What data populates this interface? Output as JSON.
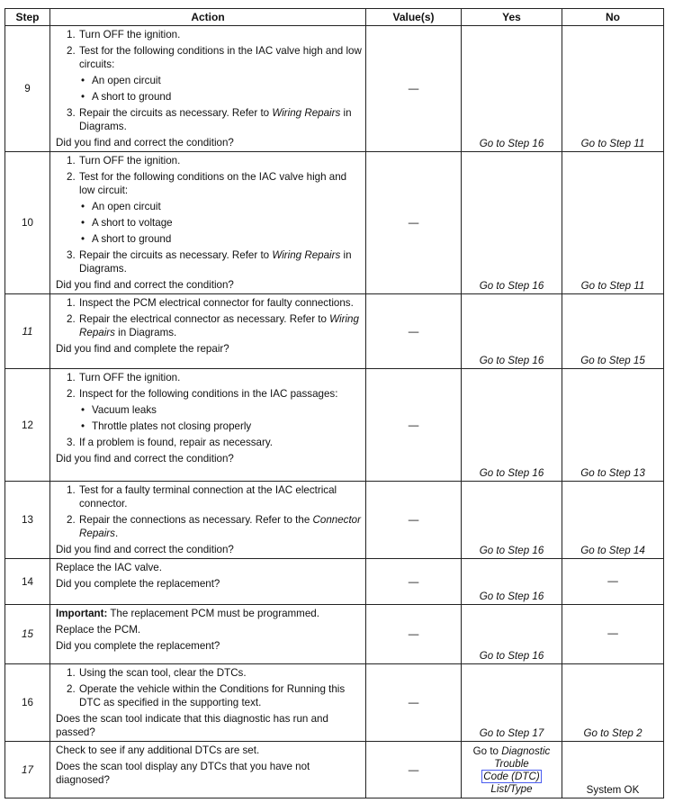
{
  "headers": {
    "step": "Step",
    "action": "Action",
    "values": "Value(s)",
    "yes": "Yes",
    "no": "No"
  },
  "rows": [
    {
      "step": "9",
      "step_italic": false,
      "value": "—",
      "yes": "Go to Step 16",
      "no": "Go to Step 11",
      "action": [
        {
          "type": "num",
          "n": "1.",
          "segs": [
            {
              "t": "Turn OFF the ignition."
            }
          ]
        },
        {
          "type": "num",
          "n": "2.",
          "segs": [
            {
              "t": "Test for the following conditions in the IAC valve high and low circuits:"
            }
          ]
        },
        {
          "type": "bul",
          "segs": [
            {
              "t": "An open circuit"
            }
          ]
        },
        {
          "type": "bul",
          "segs": [
            {
              "t": "A short to ground"
            }
          ]
        },
        {
          "type": "num",
          "n": "3.",
          "segs": [
            {
              "t": "Repair the circuits as necessary. Refer to "
            },
            {
              "t": "Wiring Repairs",
              "i": true
            },
            {
              "t": " in Diagrams."
            }
          ]
        },
        {
          "type": "p",
          "segs": [
            {
              "t": "Did you find and correct the condition?"
            }
          ]
        }
      ]
    },
    {
      "step": "10",
      "step_italic": false,
      "value": "—",
      "yes": "Go to Step 16",
      "no": "Go to Step 11",
      "action": [
        {
          "type": "num",
          "n": "1.",
          "segs": [
            {
              "t": "Turn OFF the ignition."
            }
          ]
        },
        {
          "type": "num",
          "n": "2.",
          "segs": [
            {
              "t": "Test for the following conditions on the IAC valve high and low circuit:"
            }
          ]
        },
        {
          "type": "bul",
          "segs": [
            {
              "t": "An open circuit"
            }
          ]
        },
        {
          "type": "bul",
          "segs": [
            {
              "t": "A short to voltage"
            }
          ]
        },
        {
          "type": "bul",
          "segs": [
            {
              "t": "A short to ground"
            }
          ]
        },
        {
          "type": "num",
          "n": "3.",
          "segs": [
            {
              "t": "Repair the circuits as necessary. Refer to "
            },
            {
              "t": "Wiring Repairs",
              "i": true
            },
            {
              "t": " in Diagrams."
            }
          ]
        },
        {
          "type": "p",
          "segs": [
            {
              "t": "Did you find and correct the condition?"
            }
          ]
        }
      ]
    },
    {
      "step": "11",
      "step_italic": true,
      "value": "—",
      "yes": "Go to Step 16",
      "no": "Go to Step 15",
      "action": [
        {
          "type": "num",
          "n": "1.",
          "segs": [
            {
              "t": "Inspect the PCM electrical connector for faulty connections."
            }
          ]
        },
        {
          "type": "num",
          "n": "2.",
          "segs": [
            {
              "t": "Repair the electrical connector as necessary. Refer to "
            },
            {
              "t": "Wiring Repairs",
              "i": true
            },
            {
              "t": " in Diagrams."
            }
          ]
        },
        {
          "type": "p",
          "segs": [
            {
              "t": "Did you find and complete the repair?"
            }
          ]
        }
      ]
    },
    {
      "step": "12",
      "step_italic": false,
      "value": "—",
      "yes": "Go to Step 16",
      "no": "Go to Step 13",
      "action": [
        {
          "type": "num",
          "n": "1.",
          "segs": [
            {
              "t": "Turn OFF the ignition."
            }
          ]
        },
        {
          "type": "num",
          "n": "2.",
          "segs": [
            {
              "t": "Inspect for the following conditions in the IAC passages:"
            }
          ]
        },
        {
          "type": "bul",
          "segs": [
            {
              "t": "Vacuum leaks"
            }
          ]
        },
        {
          "type": "bul",
          "segs": [
            {
              "t": "Throttle plates not closing properly"
            }
          ]
        },
        {
          "type": "num",
          "n": "3.",
          "segs": [
            {
              "t": "If a problem is found, repair as necessary."
            }
          ]
        },
        {
          "type": "p",
          "segs": [
            {
              "t": "Did you find and correct the condition?"
            }
          ]
        }
      ]
    },
    {
      "step": "13",
      "step_italic": false,
      "value": "—",
      "yes": "Go to Step 16",
      "no": "Go to Step 14",
      "action": [
        {
          "type": "num",
          "n": "1.",
          "segs": [
            {
              "t": "Test for a faulty terminal connection at the IAC electrical connector."
            }
          ]
        },
        {
          "type": "num",
          "n": "2.",
          "segs": [
            {
              "t": "Repair the connections as necessary. Refer to the "
            },
            {
              "t": "Connector Repairs",
              "i": true
            },
            {
              "t": "."
            }
          ]
        },
        {
          "type": "p",
          "segs": [
            {
              "t": "Did you find and correct the condition?"
            }
          ]
        }
      ]
    },
    {
      "step": "14",
      "step_italic": false,
      "value": "—",
      "yes": "Go to Step 16",
      "no": "—",
      "action": [
        {
          "type": "p",
          "segs": [
            {
              "t": "Replace the IAC valve."
            }
          ]
        },
        {
          "type": "p",
          "segs": [
            {
              "t": "Did you complete the replacement?"
            }
          ]
        }
      ]
    },
    {
      "step": "15",
      "step_italic": true,
      "value": "—",
      "yes": "Go to Step 16",
      "no": "—",
      "action": [
        {
          "type": "p",
          "segs": [
            {
              "t": "Important:",
              "b": true
            },
            {
              "t": " The replacement PCM must be programmed."
            }
          ]
        },
        {
          "type": "p",
          "segs": [
            {
              "t": "Replace the PCM."
            }
          ]
        },
        {
          "type": "p",
          "segs": [
            {
              "t": " Did you complete the replacement?"
            }
          ]
        }
      ]
    },
    {
      "step": "16",
      "step_italic": false,
      "value": "—",
      "yes": "Go to Step 17",
      "no": "Go to Step 2",
      "action": [
        {
          "type": "num",
          "n": "1.",
          "segs": [
            {
              "t": "Using the scan tool, clear the DTCs."
            }
          ]
        },
        {
          "type": "num",
          "n": "2.",
          "segs": [
            {
              "t": "Operate the vehicle within the Conditions for Running this DTC as specified in the supporting text."
            }
          ]
        },
        {
          "type": "p",
          "segs": [
            {
              "t": "Does the scan tool indicate that this diagnostic has run and passed?"
            }
          ]
        }
      ]
    },
    {
      "step": "17",
      "step_italic": true,
      "value": "—",
      "yes": null,
      "no": "System OK",
      "action": [
        {
          "type": "p",
          "segs": [
            {
              "t": "Check to see if any additional DTCs are set."
            }
          ]
        },
        {
          "type": "p",
          "segs": [
            {
              "t": "Does the scan tool display any DTCs that you have not diagnosed?"
            }
          ]
        }
      ]
    }
  ],
  "step17_yes": {
    "prefix": "Go to ",
    "line1": "Diagnostic",
    "line2": "Trouble",
    "link": "Code (DTC)",
    "line4": "List/Type"
  }
}
